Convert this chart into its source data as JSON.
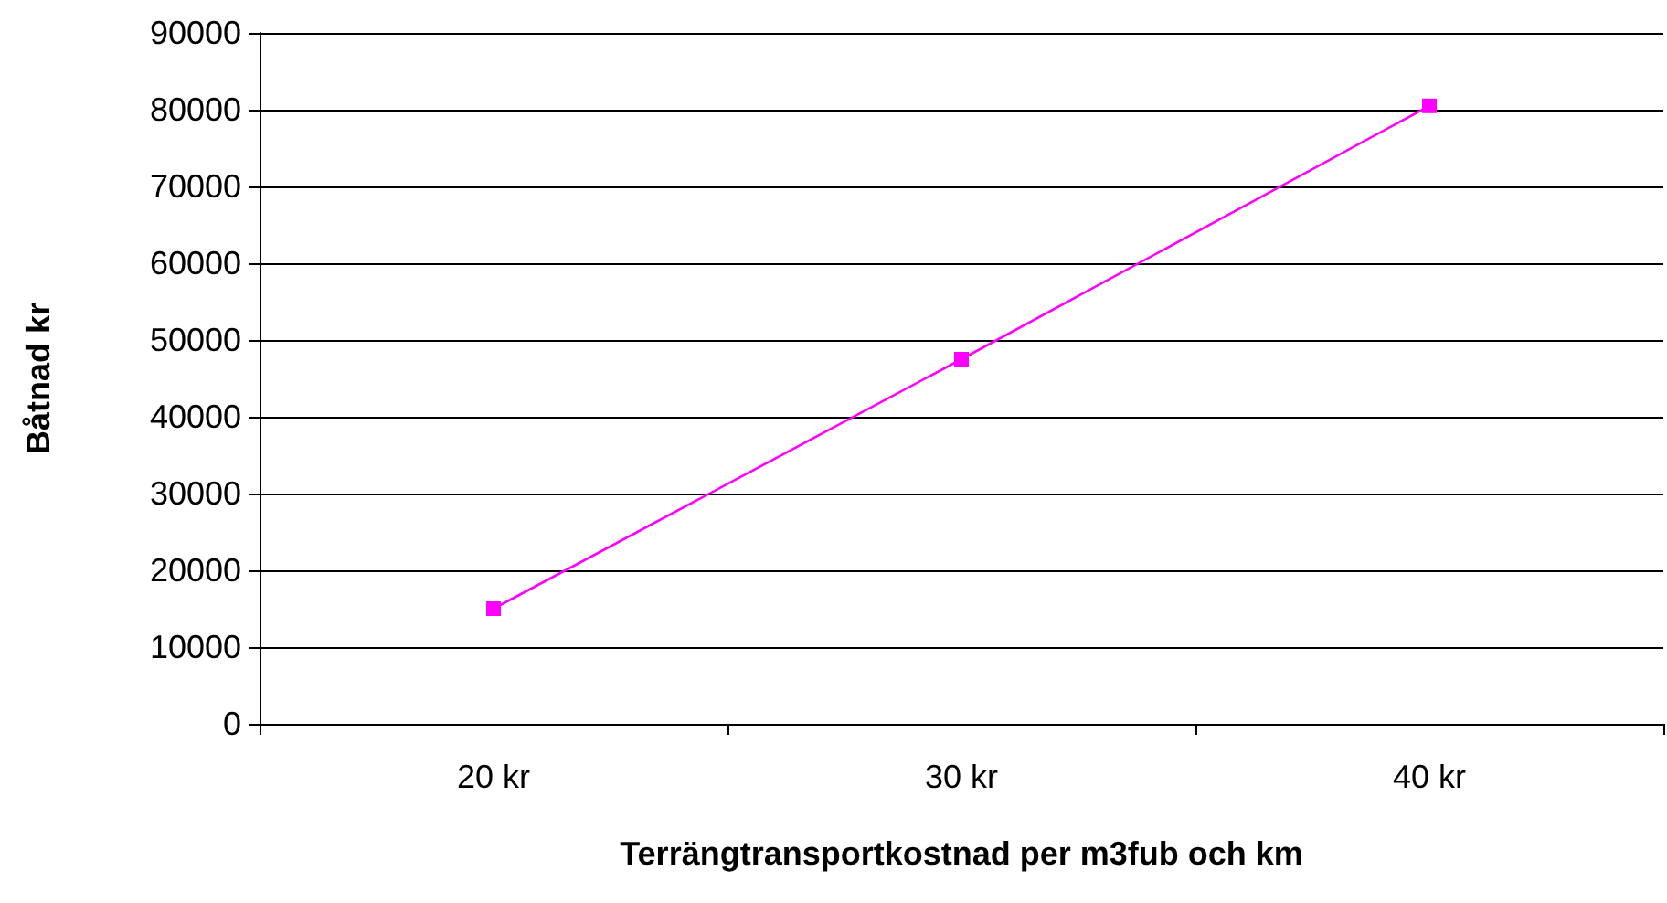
{
  "chart_data": {
    "type": "line",
    "xlabel": "Terrängtransportkostnad per m3fub och km",
    "ylabel": "Båtnad kr",
    "categories": [
      "20 kr",
      "30 kr",
      "40 kr"
    ],
    "series": [
      {
        "color": "#ff00ff",
        "values": [
          15000,
          47500,
          80500
        ]
      }
    ],
    "ylim": [
      0,
      90000
    ],
    "yticks": [
      0,
      10000,
      20000,
      30000,
      40000,
      50000,
      60000,
      70000,
      80000,
      90000
    ],
    "grid": "y",
    "marker": "square",
    "line_style": "solid"
  }
}
